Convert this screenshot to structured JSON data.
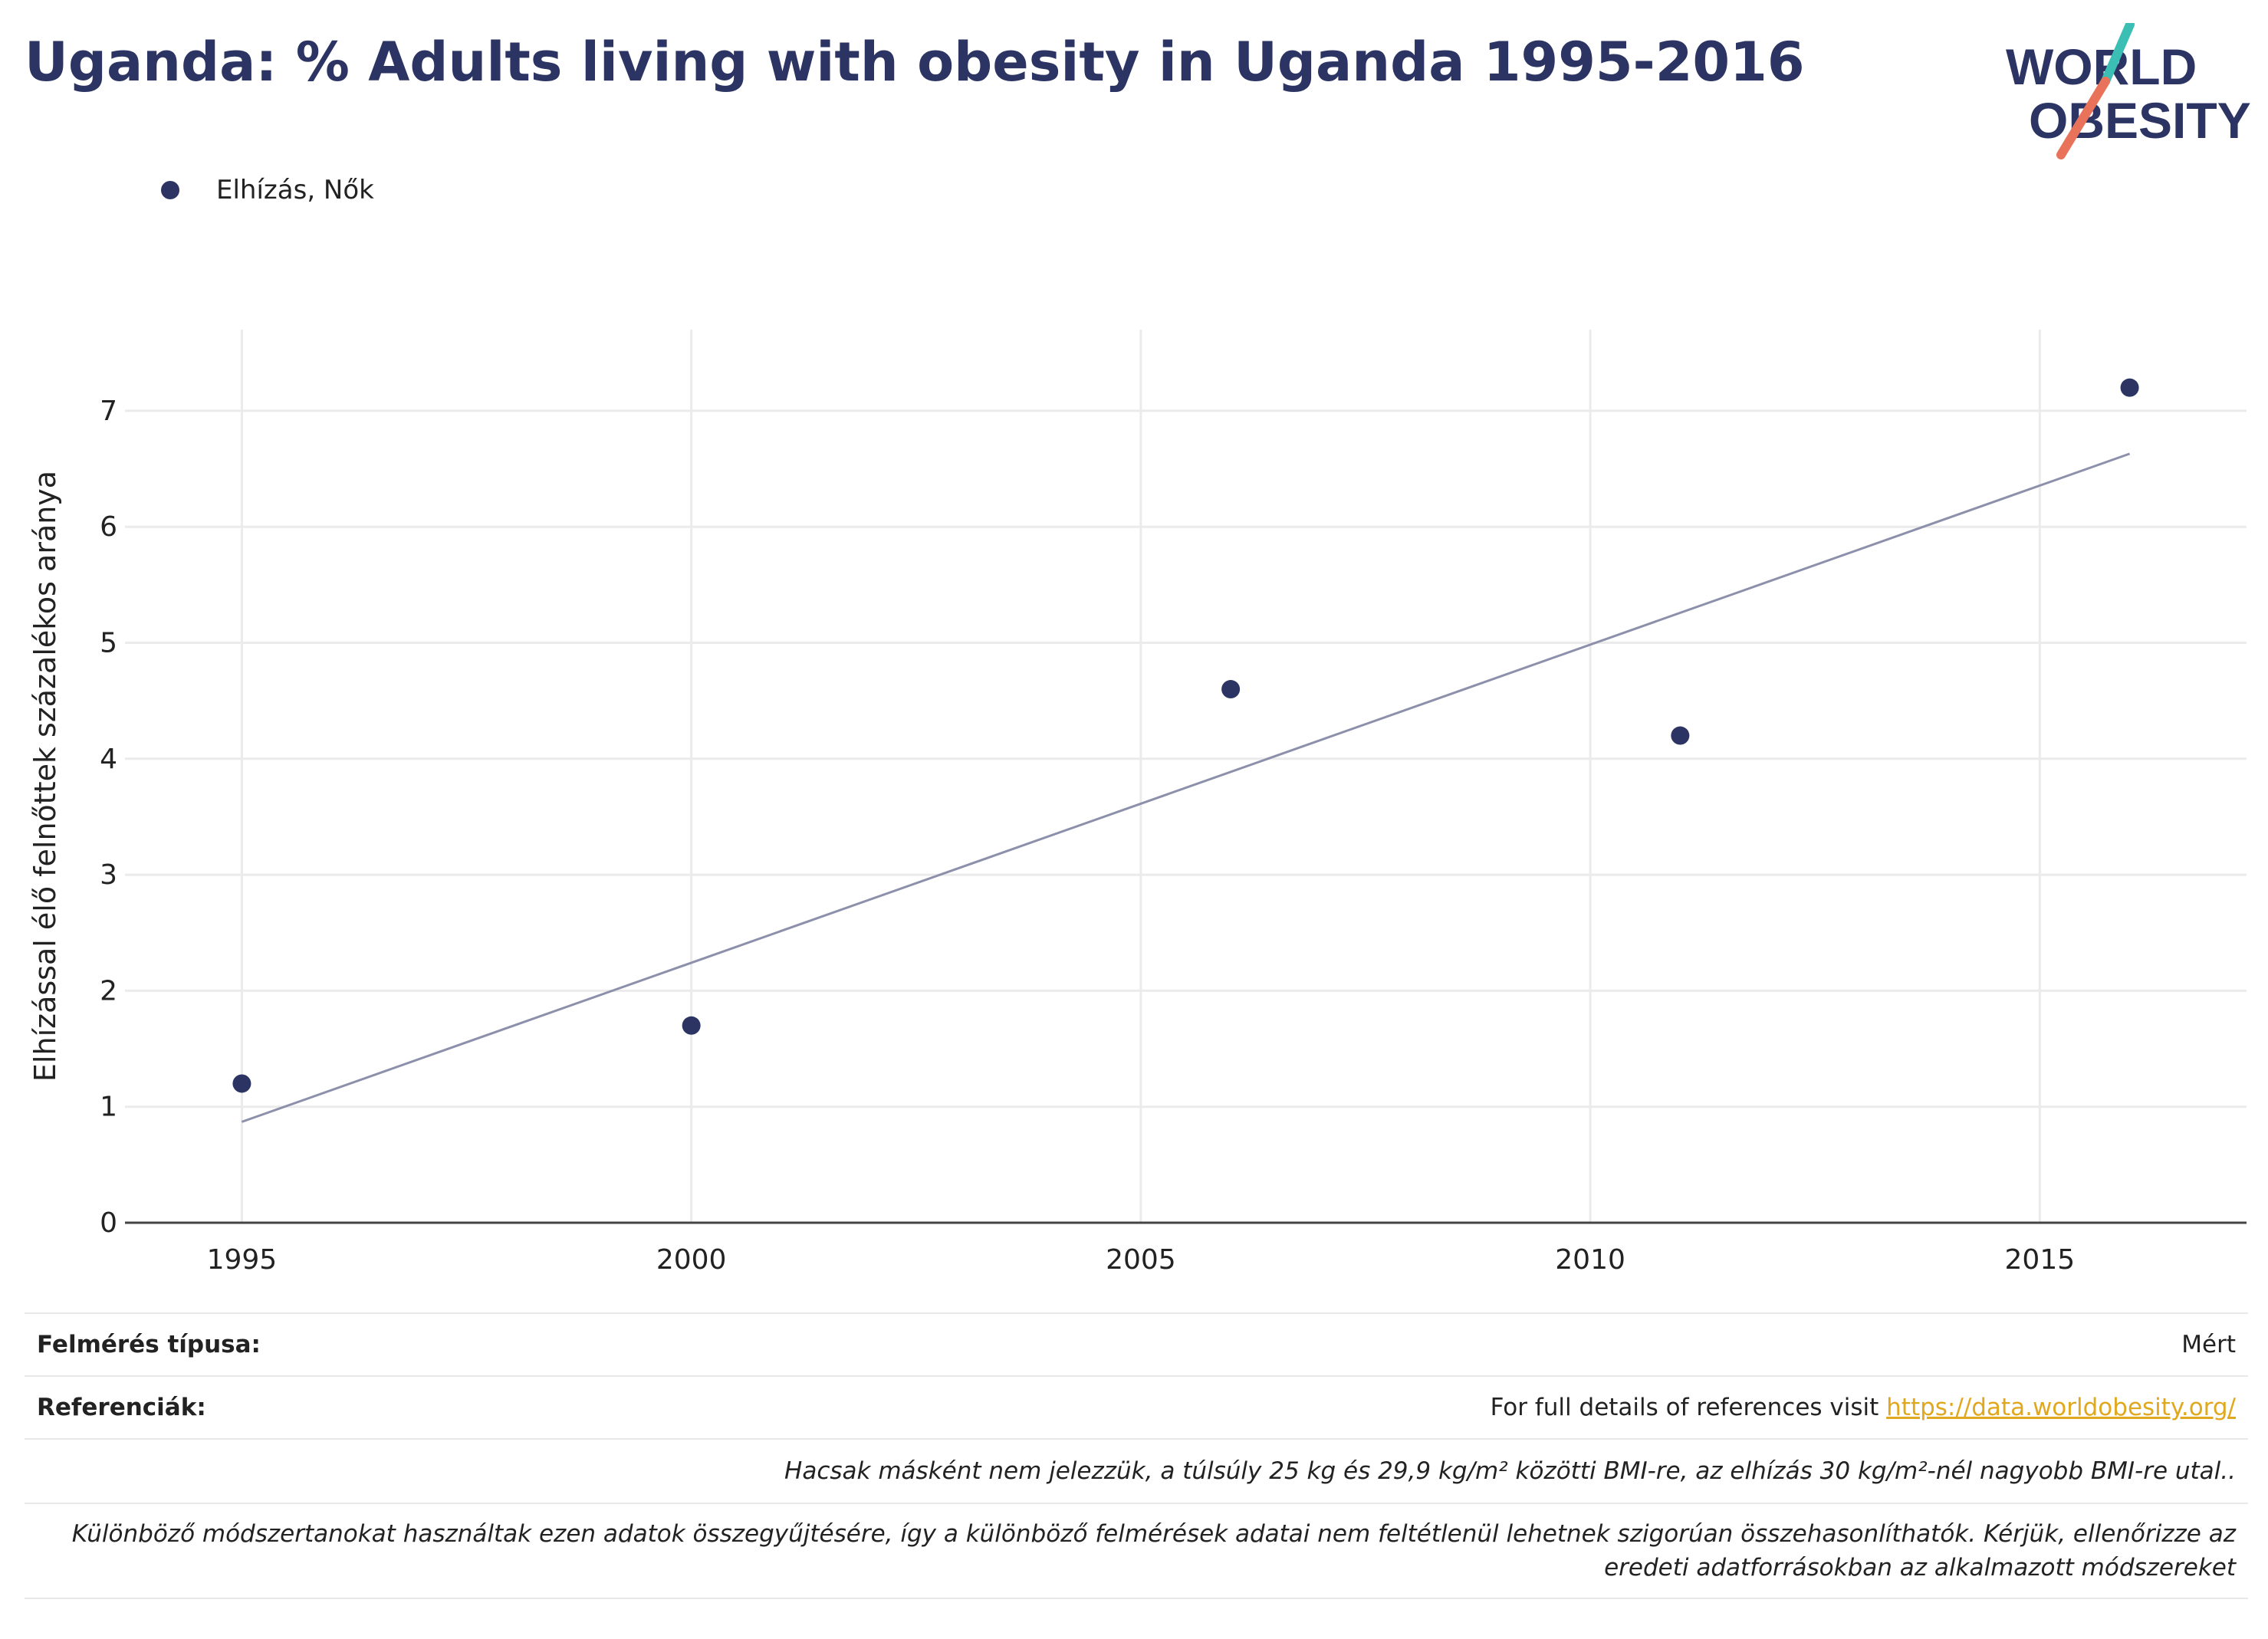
{
  "title": "Uganda: % Adults living with obesity in Uganda 1995-2016",
  "logo": {
    "line1": "WORLD",
    "line2": "OBESITY",
    "colors": {
      "navy": "#2b3462",
      "teal": "#3bbfb4",
      "coral": "#e8735a"
    }
  },
  "legend": {
    "label": "Elhízás, Nők",
    "color": "#2b3462"
  },
  "chart_data": {
    "type": "scatter",
    "title": "",
    "xlabel": "",
    "ylabel": "Elhízással élő felnőttek százalékos aránya",
    "xlim": [
      1993.7,
      2017.3
    ],
    "ylim": [
      0,
      7.7
    ],
    "x_ticks": [
      1995,
      2000,
      2005,
      2010,
      2015
    ],
    "y_ticks": [
      0,
      1,
      2,
      3,
      4,
      5,
      6,
      7
    ],
    "grid": true,
    "legend_position": "top-left",
    "series": [
      {
        "name": "Elhízás, Nők",
        "color": "#2b3462",
        "points": [
          {
            "x": 1995,
            "y": 1.2
          },
          {
            "x": 2000,
            "y": 1.7
          },
          {
            "x": 2006,
            "y": 4.6
          },
          {
            "x": 2011,
            "y": 4.2
          },
          {
            "x": 2016,
            "y": 7.2
          }
        ]
      }
    ],
    "trendline": {
      "color": "#8c90aa",
      "start": {
        "x": 1995,
        "y": 0.87
      },
      "end": {
        "x": 2016,
        "y": 6.63
      }
    }
  },
  "footer": {
    "survey_type_label": "Felmérés típusa:",
    "survey_type_value": "Mért",
    "references_label": "Referenciák:",
    "references_text": "For full details of references visit ",
    "references_link": "https://data.worldobesity.org/",
    "note1": "Hacsak másként nem jelezzük, a túlsúly 25 kg és 29,9 kg/m² közötti BMI-re, az elhízás 30 kg/m²-nél nagyobb BMI-re utal..",
    "note2_line1": "Különböző módszertanokat használtak ezen adatok összegyűjtésére, így a különböző felmérések adatai nem feltétlenül lehetnek szigorúan összehasonlíthatók. Kérjük, ellenőrizze az",
    "note2_line2": "eredeti adatforrásokban az alkalmazott módszereket"
  }
}
